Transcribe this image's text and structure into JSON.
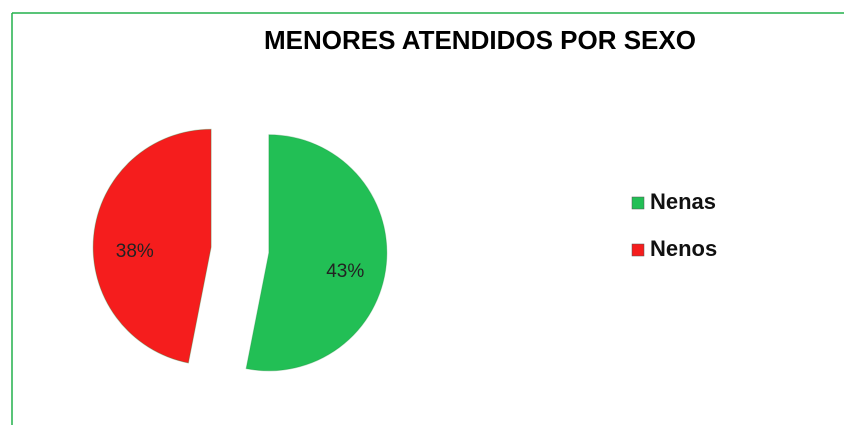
{
  "chart_data": {
    "type": "pie",
    "title": "MENORES ATENDIDOS POR SEXO",
    "categories": [
      "Nenas",
      "Nenos"
    ],
    "values": [
      43,
      38
    ],
    "value_labels": [
      "43%",
      "38%"
    ],
    "colors": [
      "#22bf55",
      "#f51d1d"
    ],
    "legend": "right",
    "exploded": true
  }
}
